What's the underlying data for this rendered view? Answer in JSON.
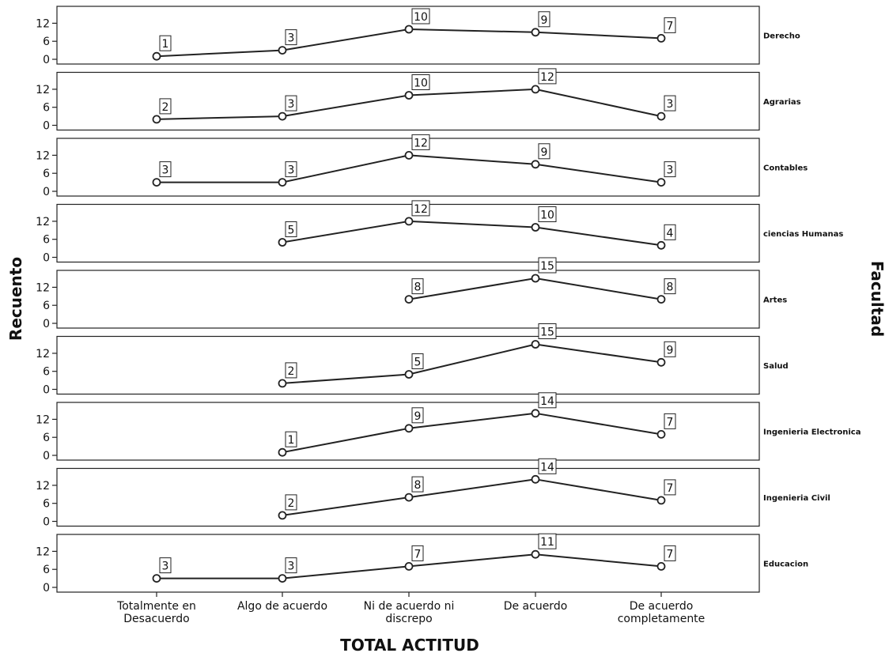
{
  "chart_data": {
    "type": "line",
    "xlabel": "TOTAL ACTITUD",
    "ylabel": "Recuento",
    "facet_label": "Facultad",
    "categories": [
      "Totalmente en\nDesacuerdo",
      "Algo de acuerdo",
      "Ni de acuerdo ni\ndiscrepo",
      "De acuerdo",
      "De acuerdo\ncompletamente"
    ],
    "ylim": [
      0,
      15
    ],
    "yticks": [
      0,
      6,
      12
    ],
    "grid": false,
    "series": [
      {
        "name": "Derecho",
        "values": [
          1,
          3,
          10,
          9,
          7
        ]
      },
      {
        "name": "Agrarias",
        "values": [
          2,
          3,
          10,
          12,
          3
        ]
      },
      {
        "name": "Contables",
        "values": [
          3,
          3,
          12,
          9,
          3
        ]
      },
      {
        "name": "ciencias Humanas",
        "values": [
          null,
          5,
          12,
          10,
          4
        ]
      },
      {
        "name": "Artes",
        "values": [
          null,
          null,
          8,
          15,
          8
        ]
      },
      {
        "name": "Salud",
        "values": [
          null,
          2,
          5,
          15,
          9
        ]
      },
      {
        "name": "Ingenieria Electronica",
        "values": [
          null,
          1,
          9,
          14,
          7
        ]
      },
      {
        "name": "Ingenieria Civil",
        "values": [
          null,
          2,
          8,
          14,
          7
        ]
      },
      {
        "name": "Educacion",
        "values": [
          3,
          3,
          7,
          11,
          7
        ]
      }
    ]
  }
}
